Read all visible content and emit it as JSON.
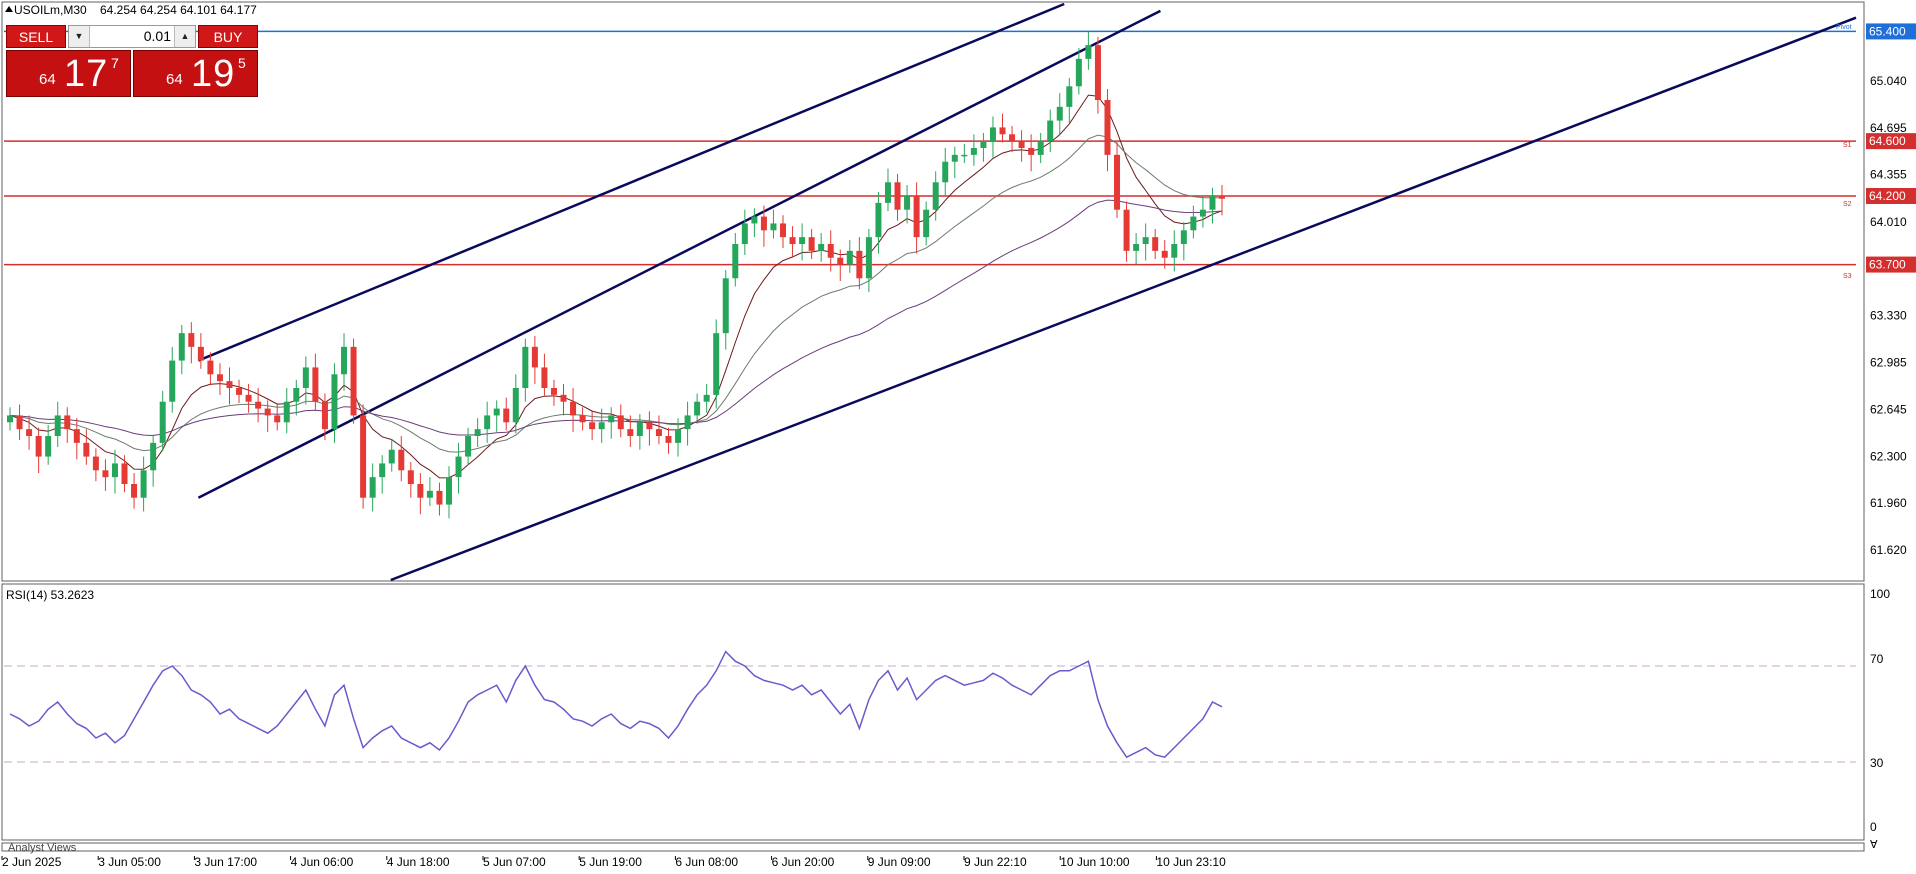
{
  "header": {
    "symbol_label": "USOILm,M30",
    "ohlc": "64.254 64.254 64.101 64.177"
  },
  "trade_panel": {
    "sell_label": "SELL",
    "buy_label": "BUY",
    "lot": "0.01",
    "sell_small": "64",
    "sell_big": "17",
    "sell_sup": "7",
    "buy_small": "64",
    "buy_big": "19",
    "buy_sup": "5"
  },
  "rsi": {
    "label": "RSI(14) 53.2623",
    "scale_labels": [
      "100",
      "70",
      "30",
      "0"
    ]
  },
  "footer_label": "Analyst Views",
  "pivot_text": {
    "pivot": "Pivot",
    "s1": "S1",
    "s2": "S2",
    "s3": "S3"
  },
  "colors": {
    "bull": "#26a65b",
    "bear": "#e53935",
    "channel": "#0a0a5c",
    "level": "#d32f2f",
    "pivot": "#1e6fd9",
    "ma_fast": "#6b1a1a",
    "ma_mid": "#6b7d6b",
    "ma_slow": "#6a3d7a",
    "rsi": "#6a5acd",
    "price_tag": "#e53935"
  },
  "chart_data": [
    {
      "type": "candlestick",
      "symbol": "USOILm",
      "timeframe": "M30",
      "ylim": [
        61.4,
        65.6
      ],
      "y_ticks": [
        "65.040",
        "64.695",
        "64.355",
        "64.010",
        "63.330",
        "62.985",
        "62.645",
        "62.300",
        "61.960",
        "61.620"
      ],
      "x_ticks": [
        "2 Jun 2025",
        "3 Jun 05:00",
        "3 Jun 17:00",
        "4 Jun 06:00",
        "4 Jun 18:00",
        "5 Jun 07:00",
        "5 Jun 19:00",
        "6 Jun 08:00",
        "6 Jun 20:00",
        "9 Jun 09:00",
        "9 Jun 22:10",
        "10 Jun 10:00",
        "10 Jun 23:10"
      ],
      "levels": [
        {
          "label": "65.400",
          "value": 65.4,
          "role": "pivot"
        },
        {
          "label": "64.600",
          "value": 64.6,
          "role": "S1"
        },
        {
          "label": "64.200",
          "value": 64.2,
          "role": "S2"
        },
        {
          "label": "63.700",
          "value": 63.7,
          "role": "S3"
        }
      ],
      "channel_lines": [
        {
          "from": [
            "3 Jun 17:00",
            63.0
          ],
          "to": [
            "10 Jun 10:00",
            65.6
          ]
        },
        {
          "from": [
            "3 Jun 17:00",
            62.0
          ],
          "to": [
            "10 Jun 23:10",
            65.55
          ]
        },
        {
          "from": [
            "4 Jun 18:00",
            61.4
          ],
          "to": [
            "end",
            65.5
          ]
        }
      ],
      "closes": [
        62.6,
        62.5,
        62.45,
        62.3,
        62.45,
        62.6,
        62.5,
        62.4,
        62.3,
        62.2,
        62.15,
        62.25,
        62.1,
        62.0,
        62.2,
        62.4,
        62.7,
        63.0,
        63.2,
        63.1,
        63.0,
        62.9,
        62.85,
        62.8,
        62.75,
        62.7,
        62.65,
        62.6,
        62.55,
        62.7,
        62.8,
        62.95,
        62.7,
        62.5,
        62.9,
        63.1,
        62.6,
        62.0,
        62.15,
        62.25,
        62.35,
        62.2,
        62.1,
        62.0,
        62.05,
        61.95,
        62.15,
        62.3,
        62.45,
        62.5,
        62.6,
        62.65,
        62.55,
        62.8,
        63.1,
        62.95,
        62.8,
        62.75,
        62.7,
        62.6,
        62.55,
        62.5,
        62.55,
        62.6,
        62.5,
        62.45,
        62.55,
        62.5,
        62.45,
        62.4,
        62.5,
        62.6,
        62.7,
        62.75,
        63.2,
        63.6,
        63.85,
        64.0,
        64.05,
        63.95,
        64.0,
        63.9,
        63.85,
        63.9,
        63.8,
        63.85,
        63.75,
        63.7,
        63.8,
        63.6,
        63.9,
        64.15,
        64.3,
        64.1,
        64.2,
        63.9,
        64.1,
        64.3,
        64.45,
        64.5,
        64.5,
        64.55,
        64.6,
        64.7,
        64.65,
        64.6,
        64.55,
        64.5,
        64.6,
        64.75,
        64.85,
        65.0,
        65.2,
        65.3,
        64.9,
        64.5,
        64.1,
        63.8,
        63.85,
        63.9,
        63.8,
        63.75,
        63.85,
        63.95,
        64.05,
        64.1,
        64.2,
        64.18
      ],
      "ma_fast_end": 64.15,
      "ma_mid_end": 64.1,
      "ma_slow_end": 63.75
    },
    {
      "type": "line",
      "name": "RSI(14)",
      "ylim": [
        0,
        100
      ],
      "levels": [
        70,
        30
      ],
      "last": 53.2623,
      "values": [
        50,
        48,
        45,
        47,
        52,
        55,
        50,
        46,
        44,
        40,
        42,
        38,
        41,
        48,
        55,
        62,
        68,
        70,
        66,
        60,
        58,
        55,
        50,
        52,
        48,
        46,
        44,
        42,
        45,
        50,
        55,
        60,
        52,
        45,
        58,
        62,
        48,
        36,
        40,
        43,
        45,
        40,
        38,
        36,
        38,
        35,
        40,
        47,
        55,
        58,
        60,
        62,
        55,
        64,
        70,
        62,
        56,
        55,
        52,
        48,
        47,
        45,
        48,
        50,
        46,
        44,
        47,
        46,
        44,
        40,
        45,
        52,
        58,
        62,
        68,
        76,
        72,
        70,
        66,
        64,
        63,
        62,
        60,
        62,
        58,
        60,
        55,
        50,
        54,
        44,
        56,
        64,
        68,
        60,
        65,
        56,
        60,
        64,
        66,
        64,
        62,
        63,
        64,
        67,
        65,
        62,
        60,
        58,
        62,
        66,
        68,
        68,
        70,
        72,
        56,
        45,
        38,
        32,
        34,
        36,
        33,
        32,
        36,
        40,
        44,
        48,
        55,
        53
      ]
    }
  ]
}
